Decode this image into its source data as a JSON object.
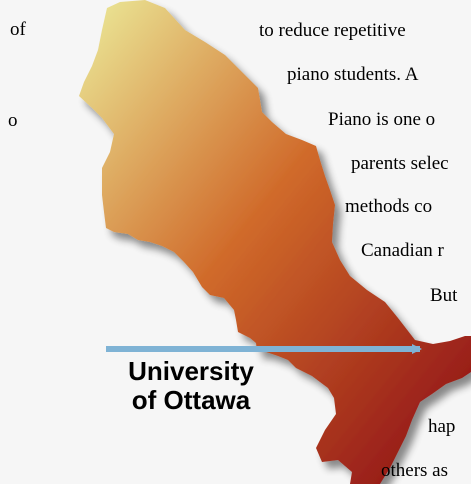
{
  "left_fragments": [
    "of",
    "o"
  ],
  "right_lines": [
    "to reduce repetitive",
    "piano students. A",
    "Piano is one o",
    "parents selec",
    "methods co",
    "Canadian r",
    "But",
    "hap",
    "others as"
  ],
  "map": {
    "label_line1": "University",
    "label_line2": "of Ottawa",
    "gradient_start": "#ecec9a",
    "gradient_mid": "#d06a2a",
    "gradient_end": "#8a0a14",
    "arrow_color": "#7fb3d5"
  }
}
